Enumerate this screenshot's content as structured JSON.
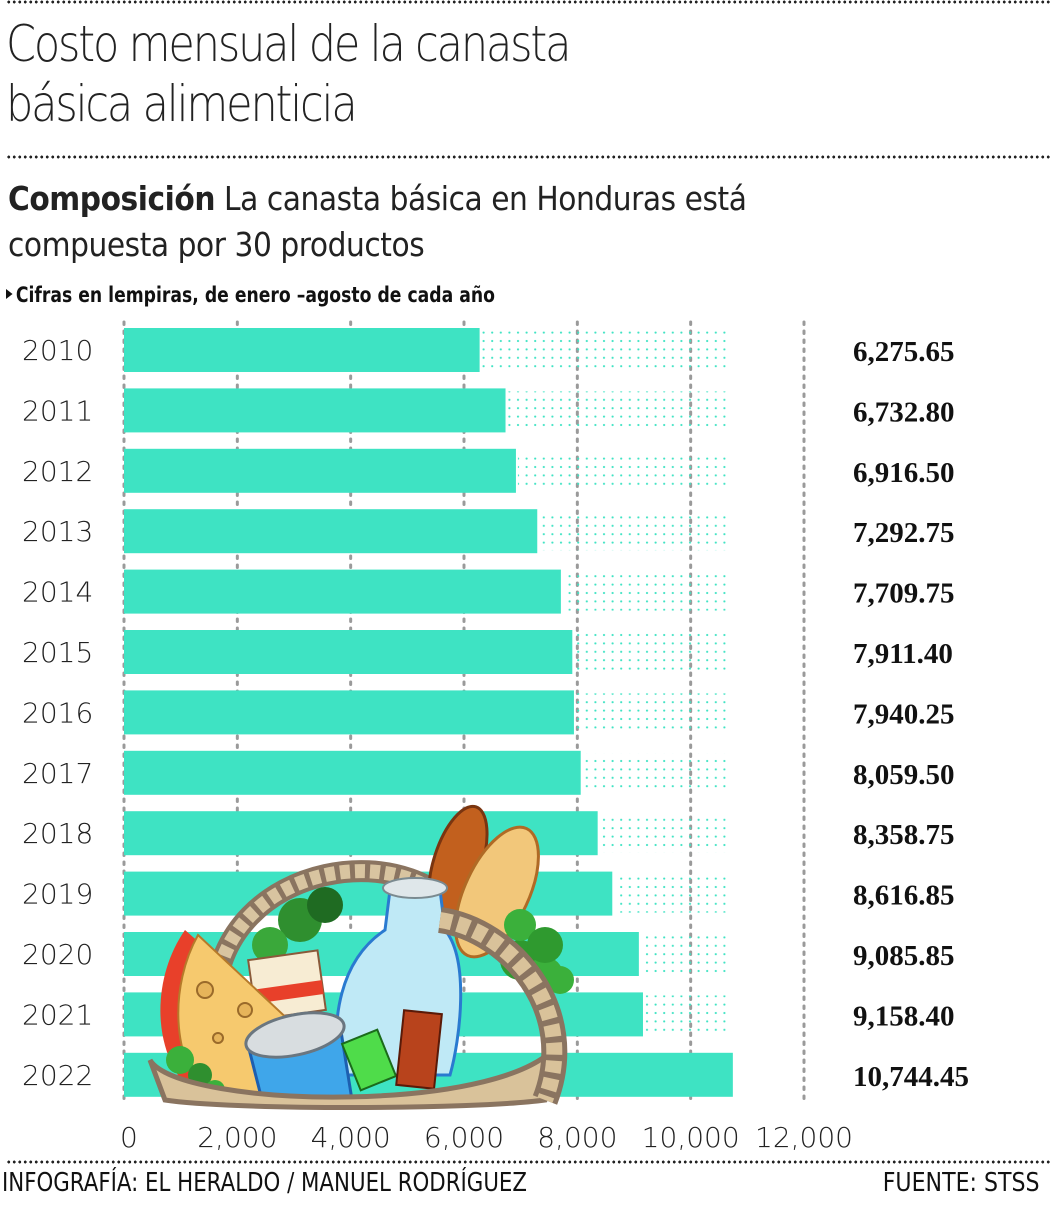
{
  "header": {
    "title_line1": "Costo mensual de la canasta",
    "title_line2": "básica alimenticia",
    "subtitle_bold": "Composición",
    "subtitle_rest_line1": "La canasta básica en Honduras está",
    "subtitle_line2": "compuesta por 30 productos",
    "note": "Cifras en lempiras, de enero –agosto de cada año"
  },
  "colors": {
    "bar": "#3EE3C3",
    "grid": "#9a9a9a",
    "text": "#111111"
  },
  "illustration": {
    "description": "wicker basket with cheese, milk bottle, bread, can, parsley and packaged goods",
    "icon": "food-basket-icon"
  },
  "chart_data": {
    "type": "bar",
    "orientation": "horizontal",
    "title": "Costo mensual de la canasta básica alimenticia",
    "subtitle": "Cifras en lempiras, de enero –agosto de cada año",
    "categories": [
      "2010",
      "2011",
      "2012",
      "2013",
      "2014",
      "2015",
      "2016",
      "2017",
      "2018",
      "2019",
      "2020",
      "2021",
      "2022"
    ],
    "values": [
      6275.65,
      6732.8,
      6916.5,
      7292.75,
      7709.75,
      7911.4,
      7940.25,
      8059.5,
      8358.75,
      8616.85,
      9085.85,
      9158.4,
      10744.45
    ],
    "value_labels": [
      "6,275.65",
      "6,732.80",
      "6,916.50",
      "7,292.75",
      "7,709.75",
      "7,911.40",
      "7,940.25",
      "8,059.50",
      "8,358.75",
      "8,616.85",
      "9,085.85",
      "9,158.40",
      "10,744.45"
    ],
    "xlabel": "",
    "ylabel": "",
    "xlim": [
      0,
      12000
    ],
    "xticks": [
      0,
      2000,
      4000,
      6000,
      8000,
      10000,
      12000
    ],
    "xtick_labels": [
      "0",
      "2,000",
      "4,000",
      "6,000",
      "8,000",
      "10,000",
      "12,000"
    ],
    "dotted_fill_to": 10700,
    "grid": true,
    "legend": "none"
  },
  "footer": {
    "credit": "INFOGRAFÍA: EL HERALDO / MANUEL RODRÍGUEZ",
    "source": "FUENTE: STSS"
  }
}
